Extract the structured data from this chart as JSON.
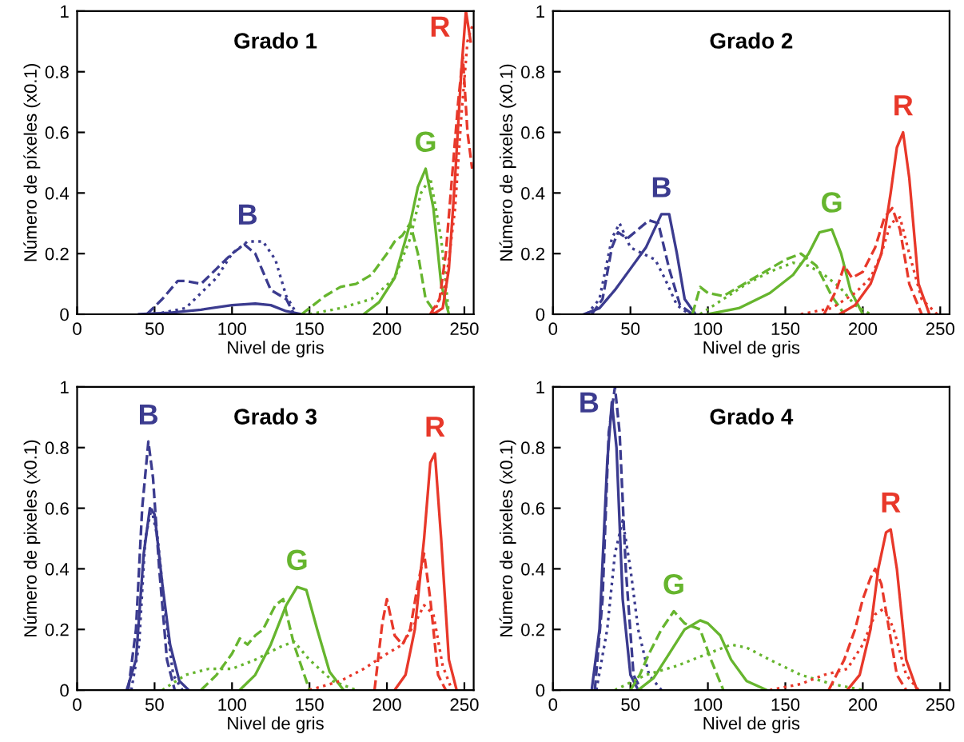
{
  "chart_data": [
    {
      "type": "line",
      "title": "Grado 1",
      "xlabel": "Nivel de gris",
      "ylabel": "Número de píxeles (x0.1)",
      "xlim": [
        0,
        256
      ],
      "ylim": [
        0,
        1
      ],
      "xticks": [
        0,
        50,
        100,
        150,
        200,
        250
      ],
      "yticks": [
        0,
        0.2,
        0.4,
        0.6,
        0.8,
        1
      ],
      "grid": false,
      "legend": false,
      "series": [
        {
          "color": "#3b3b8f",
          "line_style": "solid",
          "x": [
            40,
            60,
            80,
            100,
            115,
            125,
            135,
            145
          ],
          "values": [
            0,
            0.005,
            0.015,
            0.03,
            0.035,
            0.03,
            0.01,
            0
          ]
        },
        {
          "color": "#3b3b8f",
          "line_style": "dashed",
          "x": [
            45,
            55,
            65,
            70,
            80,
            90,
            100,
            108,
            115,
            125,
            135,
            140
          ],
          "values": [
            0,
            0.05,
            0.11,
            0.11,
            0.1,
            0.15,
            0.2,
            0.23,
            0.2,
            0.08,
            0.05,
            0
          ]
        },
        {
          "name": "B",
          "color": "#3b3b8f",
          "line_style": "dotted",
          "x": [
            50,
            70,
            90,
            100,
            110,
            120,
            128,
            135,
            142
          ],
          "values": [
            0,
            0.02,
            0.12,
            0.2,
            0.24,
            0.24,
            0.18,
            0.06,
            0
          ]
        },
        {
          "name": "G",
          "color": "#66b52e",
          "line_style": "solid",
          "x": [
            185,
            195,
            205,
            215,
            220,
            225,
            230,
            235,
            240
          ],
          "values": [
            0,
            0.04,
            0.12,
            0.3,
            0.42,
            0.48,
            0.35,
            0.1,
            0
          ]
        },
        {
          "color": "#66b52e",
          "line_style": "dashed",
          "x": [
            145,
            160,
            170,
            180,
            190,
            200,
            205,
            210,
            215,
            220,
            225,
            232
          ],
          "values": [
            0,
            0.06,
            0.09,
            0.1,
            0.13,
            0.2,
            0.24,
            0.26,
            0.3,
            0.2,
            0.05,
            0
          ]
        },
        {
          "color": "#66b52e",
          "line_style": "dotted",
          "x": [
            150,
            170,
            190,
            205,
            215,
            222,
            228,
            235,
            240
          ],
          "values": [
            0,
            0.02,
            0.05,
            0.12,
            0.25,
            0.4,
            0.45,
            0.25,
            0
          ]
        },
        {
          "name": "R",
          "color": "#e8382a",
          "line_style": "solid",
          "x": [
            230,
            236,
            240,
            244,
            248,
            251,
            254
          ],
          "values": [
            0,
            0.02,
            0.15,
            0.45,
            0.8,
            1.0,
            0.9
          ]
        },
        {
          "color": "#e8382a",
          "line_style": "dashed",
          "x": [
            228,
            234,
            238,
            242,
            246,
            249,
            252,
            255
          ],
          "values": [
            0,
            0.05,
            0.2,
            0.45,
            0.7,
            0.85,
            0.6,
            0.48
          ]
        },
        {
          "color": "#e8382a",
          "line_style": "dotted",
          "x": [
            230,
            238,
            244,
            248,
            252,
            255
          ],
          "values": [
            0,
            0.1,
            0.35,
            0.65,
            0.9,
            0.95
          ]
        }
      ]
    },
    {
      "type": "line",
      "title": "Grado 2",
      "xlabel": "Nivel de gris",
      "ylabel": "Número de pixeles (x0.1)",
      "xlim": [
        0,
        256
      ],
      "ylim": [
        0,
        1
      ],
      "xticks": [
        0,
        50,
        100,
        150,
        200,
        250
      ],
      "yticks": [
        0,
        0.2,
        0.4,
        0.6,
        0.8,
        1
      ],
      "grid": false,
      "legend": false,
      "series": [
        {
          "name": "B",
          "color": "#3b3b8f",
          "line_style": "solid",
          "x": [
            20,
            30,
            40,
            50,
            60,
            70,
            75,
            80,
            85,
            92
          ],
          "values": [
            0,
            0.02,
            0.08,
            0.15,
            0.22,
            0.33,
            0.33,
            0.2,
            0.05,
            0
          ]
        },
        {
          "color": "#3b3b8f",
          "line_style": "dashed",
          "x": [
            25,
            32,
            38,
            42,
            48,
            55,
            62,
            68,
            75,
            82,
            90
          ],
          "values": [
            0,
            0.05,
            0.22,
            0.27,
            0.25,
            0.28,
            0.31,
            0.3,
            0.15,
            0.03,
            0
          ]
        },
        {
          "color": "#3b3b8f",
          "line_style": "dotted",
          "x": [
            22,
            30,
            38,
            43,
            50,
            58,
            66,
            72,
            80,
            88
          ],
          "values": [
            0,
            0.05,
            0.25,
            0.3,
            0.22,
            0.2,
            0.18,
            0.12,
            0.03,
            0
          ]
        },
        {
          "name": "G",
          "color": "#66b52e",
          "line_style": "solid",
          "x": [
            100,
            120,
            140,
            155,
            165,
            172,
            180,
            186,
            192,
            200
          ],
          "values": [
            0,
            0.02,
            0.07,
            0.13,
            0.2,
            0.27,
            0.28,
            0.2,
            0.08,
            0
          ]
        },
        {
          "color": "#66b52e",
          "line_style": "dashed",
          "x": [
            90,
            95,
            100,
            110,
            120,
            130,
            140,
            150,
            160,
            170,
            180,
            188
          ],
          "values": [
            0,
            0.09,
            0.07,
            0.06,
            0.09,
            0.12,
            0.15,
            0.18,
            0.2,
            0.16,
            0.06,
            0
          ]
        },
        {
          "color": "#66b52e",
          "line_style": "dotted",
          "x": [
            95,
            110,
            125,
            140,
            155,
            165,
            175,
            185,
            195,
            205
          ],
          "values": [
            0,
            0.05,
            0.1,
            0.14,
            0.17,
            0.16,
            0.13,
            0.09,
            0.03,
            0
          ]
        },
        {
          "name": "R",
          "color": "#e8382a",
          "line_style": "solid",
          "x": [
            185,
            195,
            205,
            212,
            218,
            222,
            226,
            230,
            236,
            243
          ],
          "values": [
            0,
            0.03,
            0.1,
            0.2,
            0.4,
            0.55,
            0.6,
            0.45,
            0.1,
            0
          ]
        },
        {
          "color": "#e8382a",
          "line_style": "dashed",
          "x": [
            175,
            183,
            188,
            193,
            200,
            208,
            214,
            219,
            224,
            230,
            238
          ],
          "values": [
            0,
            0.08,
            0.16,
            0.12,
            0.14,
            0.22,
            0.32,
            0.35,
            0.28,
            0.1,
            0
          ]
        },
        {
          "color": "#e8382a",
          "line_style": "dotted",
          "x": [
            160,
            180,
            195,
            205,
            212,
            218,
            224,
            230,
            238,
            248
          ],
          "values": [
            0,
            0.02,
            0.07,
            0.12,
            0.2,
            0.3,
            0.32,
            0.2,
            0.05,
            0
          ]
        }
      ]
    },
    {
      "type": "line",
      "title": "Grado 3",
      "xlabel": "Nivel de gris",
      "ylabel": "Número de pixeles (x0.1)",
      "xlim": [
        0,
        256
      ],
      "ylim": [
        0,
        1
      ],
      "xticks": [
        0,
        50,
        100,
        150,
        200,
        250
      ],
      "yticks": [
        0,
        0.2,
        0.4,
        0.6,
        0.8,
        1
      ],
      "grid": false,
      "legend": false,
      "series": [
        {
          "color": "#3b3b8f",
          "line_style": "solid",
          "x": [
            32,
            38,
            43,
            47,
            50,
            55,
            60,
            66,
            72
          ],
          "values": [
            0,
            0.1,
            0.45,
            0.6,
            0.58,
            0.35,
            0.15,
            0.03,
            0
          ]
        },
        {
          "name": "B",
          "color": "#3b3b8f",
          "line_style": "dashed",
          "x": [
            33,
            38,
            42,
            46,
            49,
            53,
            58,
            63
          ],
          "values": [
            0,
            0.2,
            0.6,
            0.82,
            0.7,
            0.4,
            0.1,
            0
          ]
        },
        {
          "color": "#3b3b8f",
          "line_style": "dotted",
          "x": [
            35,
            40,
            44,
            48,
            52,
            57,
            62,
            68
          ],
          "values": [
            0,
            0.15,
            0.5,
            0.6,
            0.5,
            0.25,
            0.05,
            0
          ]
        },
        {
          "name": "G",
          "color": "#66b52e",
          "line_style": "solid",
          "x": [
            105,
            115,
            125,
            135,
            142,
            148,
            155,
            163,
            172
          ],
          "values": [
            0,
            0.05,
            0.15,
            0.28,
            0.34,
            0.33,
            0.2,
            0.06,
            0
          ]
        },
        {
          "color": "#66b52e",
          "line_style": "dashed",
          "x": [
            80,
            90,
            100,
            105,
            110,
            115,
            120,
            128,
            133,
            140,
            150
          ],
          "values": [
            0,
            0.05,
            0.12,
            0.17,
            0.15,
            0.18,
            0.2,
            0.28,
            0.3,
            0.15,
            0
          ]
        },
        {
          "color": "#66b52e",
          "line_style": "dotted",
          "x": [
            55,
            70,
            85,
            100,
            115,
            130,
            140,
            150,
            165,
            180
          ],
          "values": [
            0,
            0.05,
            0.07,
            0.07,
            0.1,
            0.14,
            0.16,
            0.1,
            0.03,
            0
          ]
        },
        {
          "name": "R",
          "color": "#e8382a",
          "line_style": "solid",
          "x": [
            205,
            212,
            218,
            224,
            228,
            231,
            235,
            240,
            245
          ],
          "values": [
            0,
            0.05,
            0.2,
            0.5,
            0.75,
            0.78,
            0.5,
            0.1,
            0
          ]
        },
        {
          "color": "#e8382a",
          "line_style": "dashed",
          "x": [
            192,
            197,
            200,
            205,
            210,
            215,
            220,
            224,
            228,
            233,
            238
          ],
          "values": [
            0,
            0.22,
            0.3,
            0.18,
            0.15,
            0.2,
            0.35,
            0.45,
            0.3,
            0.05,
            0
          ]
        },
        {
          "color": "#e8382a",
          "line_style": "dotted",
          "x": [
            150,
            170,
            185,
            200,
            210,
            218,
            224,
            230,
            236,
            242
          ],
          "values": [
            0,
            0.03,
            0.07,
            0.12,
            0.15,
            0.22,
            0.28,
            0.25,
            0.08,
            0
          ]
        }
      ]
    },
    {
      "type": "line",
      "title": "Grado 4",
      "xlabel": "Nivel de gris",
      "ylabel": "Número de pixeles (x0.1)",
      "xlim": [
        0,
        256
      ],
      "ylim": [
        0,
        1
      ],
      "xticks": [
        0,
        50,
        100,
        150,
        200,
        250
      ],
      "yticks": [
        0,
        0.2,
        0.4,
        0.6,
        0.8,
        1
      ],
      "grid": false,
      "legend": false,
      "series": [
        {
          "color": "#3b3b8f",
          "line_style": "solid",
          "x": [
            25,
            30,
            35,
            38,
            41,
            45,
            50,
            55
          ],
          "values": [
            0,
            0.2,
            0.75,
            0.95,
            0.8,
            0.3,
            0.05,
            0
          ]
        },
        {
          "name": "B",
          "color": "#3b3b8f",
          "line_style": "dashed",
          "x": [
            27,
            32,
            36,
            40,
            43,
            47,
            52,
            57
          ],
          "values": [
            0,
            0.3,
            0.85,
            1.0,
            0.85,
            0.4,
            0.05,
            0
          ]
        },
        {
          "color": "#3b3b8f",
          "line_style": "dotted",
          "x": [
            28,
            35,
            40,
            45,
            50,
            55,
            62,
            70
          ],
          "values": [
            0,
            0.2,
            0.45,
            0.56,
            0.4,
            0.2,
            0.05,
            0
          ]
        },
        {
          "color": "#66b52e",
          "line_style": "solid",
          "x": [
            55,
            65,
            75,
            85,
            95,
            100,
            108,
            115,
            125,
            138
          ],
          "values": [
            0,
            0.04,
            0.12,
            0.2,
            0.23,
            0.22,
            0.18,
            0.1,
            0.03,
            0
          ]
        },
        {
          "name": "G",
          "color": "#66b52e",
          "line_style": "dashed",
          "x": [
            50,
            56,
            62,
            70,
            78,
            85,
            95,
            102,
            110
          ],
          "values": [
            0,
            0.05,
            0.12,
            0.2,
            0.26,
            0.22,
            0.2,
            0.1,
            0
          ]
        },
        {
          "color": "#66b52e",
          "line_style": "dotted",
          "x": [
            40,
            60,
            80,
            100,
            115,
            125,
            140,
            160,
            180,
            200
          ],
          "values": [
            0,
            0.05,
            0.08,
            0.12,
            0.15,
            0.14,
            0.1,
            0.05,
            0.02,
            0
          ]
        },
        {
          "name": "R",
          "color": "#e8382a",
          "line_style": "solid",
          "x": [
            190,
            198,
            205,
            210,
            215,
            218,
            222,
            228,
            235
          ],
          "values": [
            0,
            0.05,
            0.2,
            0.4,
            0.52,
            0.53,
            0.4,
            0.1,
            0
          ]
        },
        {
          "color": "#e8382a",
          "line_style": "dashed",
          "x": [
            178,
            188,
            195,
            200,
            205,
            208,
            212,
            217,
            222,
            228
          ],
          "values": [
            0,
            0.1,
            0.2,
            0.3,
            0.37,
            0.4,
            0.35,
            0.2,
            0.05,
            0
          ]
        },
        {
          "color": "#e8382a",
          "line_style": "dotted",
          "x": [
            140,
            160,
            175,
            190,
            200,
            208,
            214,
            220,
            228,
            236
          ],
          "values": [
            0,
            0.02,
            0.05,
            0.07,
            0.15,
            0.25,
            0.27,
            0.2,
            0.05,
            0
          ]
        }
      ]
    }
  ]
}
